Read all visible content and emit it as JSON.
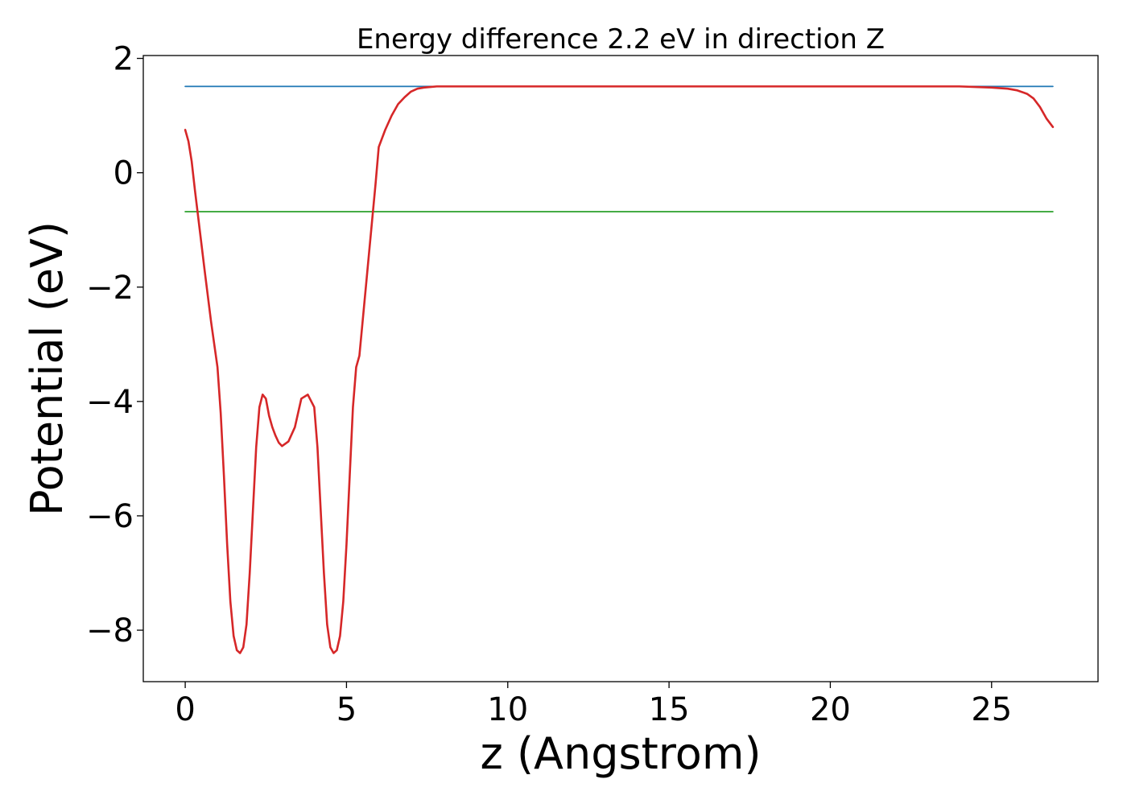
{
  "chart_data": {
    "type": "line",
    "title": "Energy difference 2.2 eV in direction Z",
    "xlabel": "z (Angstrom)",
    "ylabel": "Potential (eV)",
    "xlim": [
      -1.3,
      28.3
    ],
    "ylim": [
      -8.9,
      2.05
    ],
    "x_ticks": [
      0,
      5,
      10,
      15,
      20,
      25
    ],
    "y_ticks": [
      2,
      0,
      -2,
      -4,
      -6,
      -8
    ],
    "x_tick_labels": [
      "0",
      "5",
      "10",
      "15",
      "20",
      "25"
    ],
    "y_tick_labels": [
      "2",
      "0",
      "−2",
      "−4",
      "−6",
      "−8"
    ],
    "grid": false,
    "legend": "none",
    "series": [
      {
        "color": "#1f77b4",
        "style": "horizontal",
        "x": [
          0,
          26.9
        ],
        "y": [
          1.51,
          1.51
        ]
      },
      {
        "color": "#2ca02c",
        "style": "horizontal",
        "x": [
          0,
          26.9
        ],
        "y": [
          -0.68,
          -0.68
        ]
      },
      {
        "color": "#d62728",
        "style": "curve",
        "x": [
          0,
          0.1,
          0.2,
          0.3,
          0.45,
          0.6,
          0.8,
          1.0,
          1.1,
          1.2,
          1.3,
          1.4,
          1.5,
          1.6,
          1.7,
          1.8,
          1.9,
          2.0,
          2.1,
          2.2,
          2.3,
          2.4,
          2.5,
          2.6,
          2.7,
          2.8,
          2.9,
          3.0,
          3.2,
          3.4,
          3.5,
          3.6,
          3.8,
          4.0,
          4.1,
          4.2,
          4.3,
          4.4,
          4.5,
          4.6,
          4.7,
          4.8,
          4.9,
          5.0,
          5.1,
          5.2,
          5.3,
          5.4,
          5.5,
          5.6,
          5.7,
          5.8,
          5.9,
          6.0,
          6.2,
          6.4,
          6.6,
          6.8,
          7.0,
          7.2,
          7.4,
          7.6,
          7.8,
          8.0,
          8.3,
          8.6,
          9.0,
          9.5,
          10.0,
          11.0,
          12.0,
          13.0,
          14.0,
          15.0,
          16.0,
          17.0,
          18.0,
          19.0,
          20.0,
          21.0,
          22.0,
          23.0,
          24.0,
          24.5,
          25.0,
          25.5,
          25.8,
          26.1,
          26.3,
          26.5,
          26.7,
          26.9
        ],
        "y": [
          0.75,
          0.55,
          0.2,
          -0.3,
          -1.0,
          -1.7,
          -2.6,
          -3.4,
          -4.2,
          -5.3,
          -6.5,
          -7.5,
          -8.1,
          -8.35,
          -8.4,
          -8.3,
          -7.9,
          -7.0,
          -5.9,
          -4.8,
          -4.1,
          -3.88,
          -3.95,
          -4.25,
          -4.45,
          -4.6,
          -4.72,
          -4.78,
          -4.7,
          -4.45,
          -4.2,
          -3.95,
          -3.88,
          -4.1,
          -4.8,
          -5.9,
          -7.0,
          -7.9,
          -8.3,
          -8.4,
          -8.35,
          -8.1,
          -7.5,
          -6.5,
          -5.3,
          -4.1,
          -3.4,
          -3.2,
          -2.6,
          -2.0,
          -1.4,
          -0.8,
          -0.2,
          0.45,
          0.75,
          1.0,
          1.2,
          1.32,
          1.42,
          1.47,
          1.49,
          1.5,
          1.51,
          1.51,
          1.51,
          1.51,
          1.51,
          1.51,
          1.51,
          1.51,
          1.51,
          1.51,
          1.51,
          1.51,
          1.51,
          1.51,
          1.51,
          1.51,
          1.51,
          1.51,
          1.51,
          1.51,
          1.51,
          1.5,
          1.49,
          1.47,
          1.44,
          1.38,
          1.3,
          1.15,
          0.95,
          0.8
        ]
      }
    ]
  }
}
